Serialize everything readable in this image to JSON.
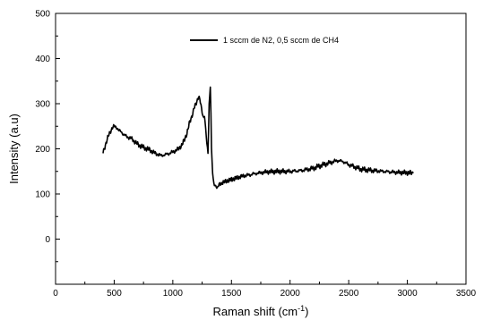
{
  "chart_data": {
    "type": "line",
    "title": "",
    "xlabel": "Raman shift (cm-1)",
    "xlabel_parts": {
      "base": "Raman shift (cm",
      "sup": "-1",
      "close": ")"
    },
    "ylabel": "Intensity (a.u)",
    "xlim": [
      0,
      3500
    ],
    "ylim": [
      -100,
      500
    ],
    "xticks": [
      0,
      500,
      1000,
      1500,
      2000,
      2500,
      3000,
      3500
    ],
    "yticks": [
      0,
      100,
      200,
      300,
      400,
      500
    ],
    "grid": false,
    "legend_position": "top-right",
    "series": [
      {
        "name": "1 sccm de N2, 0,5 sccm de CH4",
        "color": "#000000",
        "x": [
          405,
          420,
          440,
          460,
          480,
          500,
          520,
          540,
          560,
          580,
          600,
          650,
          700,
          750,
          800,
          850,
          900,
          950,
          1000,
          1050,
          1080,
          1100,
          1120,
          1140,
          1160,
          1180,
          1200,
          1220,
          1230,
          1240,
          1250,
          1260,
          1270,
          1280,
          1290,
          1300,
          1310,
          1320,
          1325,
          1330,
          1335,
          1340,
          1345,
          1350,
          1360,
          1370,
          1380,
          1390,
          1400,
          1450,
          1500,
          1550,
          1600,
          1650,
          1700,
          1750,
          1800,
          1900,
          2000,
          2100,
          2200,
          2250,
          2300,
          2350,
          2400,
          2450,
          2500,
          2550,
          2600,
          2700,
          2800,
          2900,
          3000,
          3050
        ],
        "y": [
          192,
          205,
          220,
          235,
          245,
          250,
          248,
          240,
          238,
          232,
          228,
          222,
          210,
          203,
          198,
          190,
          185,
          188,
          193,
          200,
          210,
          220,
          235,
          255,
          270,
          290,
          300,
          318,
          310,
          295,
          280,
          270,
          275,
          245,
          210,
          190,
          300,
          340,
          280,
          200,
          170,
          145,
          130,
          122,
          120,
          118,
          112,
          118,
          122,
          128,
          132,
          136,
          140,
          142,
          145,
          147,
          149,
          150,
          150,
          152,
          157,
          162,
          166,
          170,
          174,
          172,
          165,
          160,
          155,
          152,
          150,
          148,
          147,
          146
        ]
      }
    ]
  }
}
